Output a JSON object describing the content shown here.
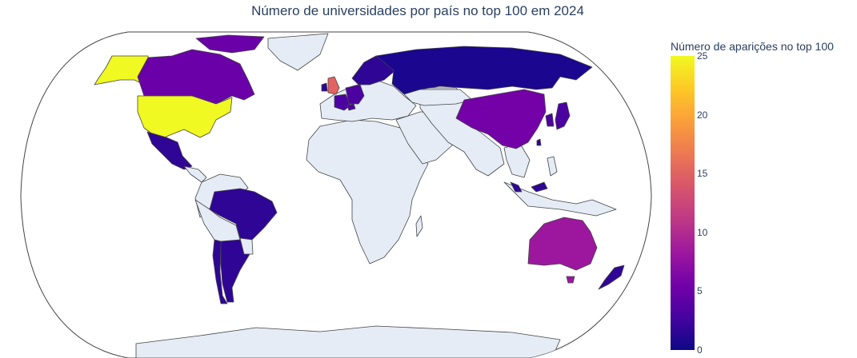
{
  "chart_data": {
    "type": "choropleth",
    "title": "Número de universidades por país no top 100 em 2024",
    "projection": "robinson",
    "colorscale": "plasma",
    "no_data_color": "#e5ecf6",
    "colorbar": {
      "title": "Número de aparições no top 100",
      "range": [
        0,
        25
      ],
      "ticks": [
        0,
        5,
        10,
        15,
        20,
        25
      ]
    },
    "values": [
      {
        "country": "United States",
        "value": 25
      },
      {
        "country": "United Kingdom",
        "value": 14
      },
      {
        "country": "Australia",
        "value": 9
      },
      {
        "country": "China",
        "value": 6
      },
      {
        "country": "Canada",
        "value": 4
      },
      {
        "country": "Hong Kong",
        "value": 5
      },
      {
        "country": "Japan",
        "value": 3
      },
      {
        "country": "Switzerland",
        "value": 3
      },
      {
        "country": "Germany",
        "value": 3
      },
      {
        "country": "France",
        "value": 3
      },
      {
        "country": "South Korea",
        "value": 3
      },
      {
        "country": "Netherlands",
        "value": 2
      },
      {
        "country": "Singapore",
        "value": 2
      },
      {
        "country": "Sweden",
        "value": 1
      },
      {
        "country": "Denmark",
        "value": 1
      },
      {
        "country": "Finland",
        "value": 1
      },
      {
        "country": "Norway",
        "value": 1
      },
      {
        "country": "Belgium",
        "value": 1
      },
      {
        "country": "Ireland",
        "value": 1
      },
      {
        "country": "Russia",
        "value": 1
      },
      {
        "country": "Mexico",
        "value": 1
      },
      {
        "country": "Brazil",
        "value": 1
      },
      {
        "country": "Argentina",
        "value": 1
      },
      {
        "country": "Chile",
        "value": 1
      },
      {
        "country": "Malaysia",
        "value": 1
      },
      {
        "country": "New Zealand",
        "value": 1
      },
      {
        "country": "Taiwan",
        "value": 1
      }
    ]
  }
}
